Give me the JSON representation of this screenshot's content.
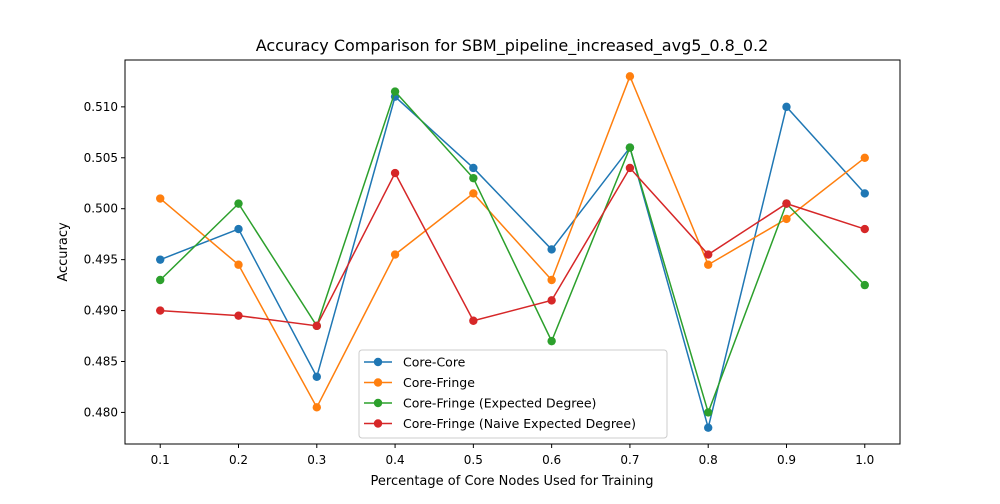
{
  "chart_data": {
    "type": "line",
    "title": "Accuracy Comparison for SBM_pipeline_increased_avg5_0.8_0.2",
    "xlabel": "Percentage of Core Nodes Used for Training",
    "ylabel": "Accuracy",
    "x": [
      0.1,
      0.2,
      0.3,
      0.4,
      0.5,
      0.6,
      0.7,
      0.8,
      0.9,
      1.0
    ],
    "xticks": [
      "0.1",
      "0.2",
      "0.3",
      "0.4",
      "0.5",
      "0.6",
      "0.7",
      "0.8",
      "0.9",
      "1.0"
    ],
    "yticks": [
      "0.480",
      "0.485",
      "0.490",
      "0.495",
      "0.500",
      "0.505",
      "0.510"
    ],
    "xlim": [
      0.055,
      1.045
    ],
    "ylim": [
      0.4769,
      0.5146
    ],
    "grid": false,
    "legend_position": "lower center",
    "series": [
      {
        "name": "Core-Core",
        "color": "#1f77b4",
        "values": [
          0.495,
          0.498,
          0.4835,
          0.511,
          0.504,
          0.496,
          0.506,
          0.4785,
          0.51,
          0.5015
        ]
      },
      {
        "name": "Core-Fringe",
        "color": "#ff7f0e",
        "values": [
          0.501,
          0.4945,
          0.4805,
          0.4955,
          0.5015,
          0.493,
          0.513,
          0.4945,
          0.499,
          0.505
        ]
      },
      {
        "name": "Core-Fringe (Expected Degree)",
        "color": "#2ca02c",
        "values": [
          0.493,
          0.5005,
          0.4885,
          0.5115,
          0.503,
          0.487,
          0.506,
          0.48,
          0.5005,
          0.4925
        ]
      },
      {
        "name": "Core-Fringe (Naive Expected Degree)",
        "color": "#d62728",
        "values": [
          0.49,
          0.4895,
          0.4885,
          0.5035,
          0.489,
          0.491,
          0.504,
          0.4955,
          0.5005,
          0.498
        ]
      }
    ]
  }
}
